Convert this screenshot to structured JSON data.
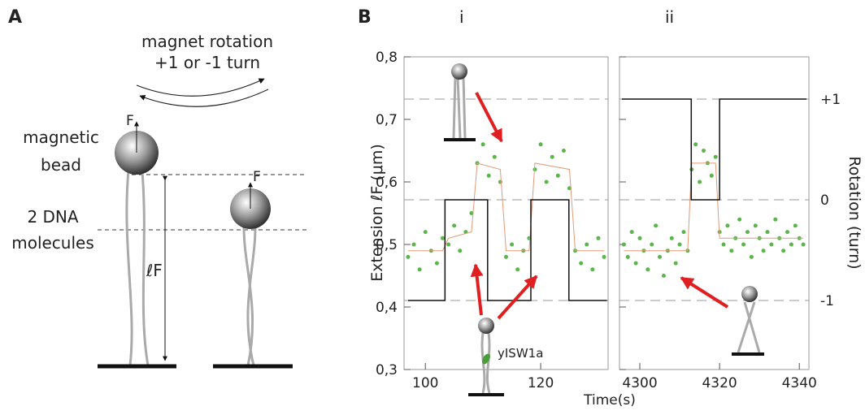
{
  "panel_labels": [
    "A",
    "B"
  ],
  "diagram": {
    "rotation_label": "magnet rotation",
    "turn_label": "+1 or -1 turn",
    "force_labels": [
      "F",
      "F"
    ],
    "bead_label": [
      "magnetic",
      "bead"
    ],
    "dna_label": [
      "2 DNA",
      "molecules"
    ],
    "extension_label": "ℓF"
  },
  "chart_data": [
    {
      "type": "scatter",
      "subtitle": "i",
      "x_label": "Time(s)",
      "y_label": "Extension ℓF (μm)",
      "annotation": "yISW1a",
      "xlim": [
        96.3,
        131.7
      ],
      "xticks": [
        100,
        120
      ],
      "ylim": [
        0.3,
        0.8
      ],
      "yticks": [
        {
          "value": 0.3,
          "label": "0,3"
        },
        {
          "value": 0.4,
          "label": "0,4"
        },
        {
          "value": 0.5,
          "label": "0,5"
        },
        {
          "value": 0.6,
          "label": "0,6"
        },
        {
          "value": 0.7,
          "label": "0,7"
        },
        {
          "value": 0.8,
          "label": "0,8"
        }
      ],
      "ytick_labels": true,
      "y2lim": [
        -1.685,
        1.419
      ],
      "y2ticks": [
        1,
        0,
        -1
      ],
      "y2tick_labels": false,
      "series": [
        {
          "color": "#5ab54a",
          "marker": "dot",
          "x": [
            97,
            98,
            99,
            100,
            101,
            102,
            103,
            104,
            105,
            106,
            107,
            108,
            109,
            110,
            111,
            112,
            113,
            114,
            115,
            116,
            117,
            118,
            119,
            120,
            121,
            122,
            123,
            124,
            125,
            126,
            127,
            128,
            129,
            130,
            131
          ],
          "values": [
            0.48,
            0.5,
            0.46,
            0.52,
            0.49,
            0.47,
            0.51,
            0.5,
            0.53,
            0.49,
            0.52,
            0.55,
            0.63,
            0.66,
            0.61,
            0.64,
            0.6,
            0.48,
            0.5,
            0.46,
            0.49,
            0.51,
            0.62,
            0.66,
            0.6,
            0.64,
            0.61,
            0.65,
            0.59,
            0.49,
            0.47,
            0.5,
            0.46,
            0.51,
            0.48
          ]
        },
        {
          "color": "#e39a78",
          "marker": "line",
          "x": [
            97,
            103,
            104,
            108,
            109,
            113,
            114,
            118,
            119,
            125,
            126,
            131
          ],
          "values": [
            0.49,
            0.49,
            0.51,
            0.52,
            0.63,
            0.62,
            0.49,
            0.49,
            0.63,
            0.62,
            0.49,
            0.49
          ]
        },
        {
          "color": "#111111",
          "marker": "step",
          "axis": "y2",
          "x": [
            97,
            103.4,
            110.8,
            118.3,
            124.9,
            131.5
          ],
          "values": [
            -1,
            0,
            -1,
            0,
            -1,
            -1
          ]
        }
      ]
    },
    {
      "type": "scatter",
      "subtitle": "ii",
      "y2_label": "Rotation (turn)",
      "xlim": [
        4294.9,
        4342.4
      ],
      "xticks": [
        4300,
        4320,
        4340
      ],
      "ylim": [
        0.3,
        0.8
      ],
      "yticks": [
        0.3,
        0.4,
        0.5,
        0.6,
        0.7,
        0.8
      ],
      "ytick_labels": false,
      "y2lim": [
        -1.685,
        1.419
      ],
      "y2ticks": [
        {
          "value": 1,
          "label": "+1"
        },
        0,
        -1
      ],
      "y2tick_labels": true,
      "series": [
        {
          "color": "#5ab54a",
          "marker": "dot",
          "x": [
            4296,
            4297,
            4298,
            4299,
            4300,
            4301,
            4302,
            4303,
            4304,
            4305,
            4306,
            4307,
            4308,
            4309,
            4310,
            4311,
            4312,
            4313,
            4314,
            4315,
            4316,
            4317,
            4318,
            4319,
            4320,
            4321,
            4322,
            4323,
            4324,
            4325,
            4326,
            4327,
            4328,
            4329,
            4330,
            4331,
            4332,
            4333,
            4334,
            4335,
            4336,
            4337,
            4338,
            4339,
            4340,
            4341
          ],
          "values": [
            0.5,
            0.48,
            0.52,
            0.47,
            0.51,
            0.49,
            0.46,
            0.5,
            0.53,
            0.48,
            0.45,
            0.49,
            0.51,
            0.47,
            0.5,
            0.52,
            0.49,
            0.62,
            0.66,
            0.6,
            0.65,
            0.63,
            0.61,
            0.64,
            0.52,
            0.5,
            0.53,
            0.49,
            0.51,
            0.54,
            0.5,
            0.52,
            0.48,
            0.53,
            0.51,
            0.49,
            0.52,
            0.5,
            0.54,
            0.51,
            0.49,
            0.52,
            0.5,
            0.53,
            0.51,
            0.5
          ]
        },
        {
          "color": "#e39a78",
          "marker": "line",
          "x": [
            4296,
            4312,
            4313,
            4319,
            4320,
            4341
          ],
          "values": [
            0.49,
            0.49,
            0.63,
            0.63,
            0.51,
            0.51
          ]
        },
        {
          "color": "#111111",
          "marker": "step",
          "axis": "y2",
          "x": [
            4295.5,
            4312.9,
            4320,
            4341.8
          ],
          "values": [
            1,
            0,
            1,
            1
          ]
        }
      ]
    }
  ]
}
